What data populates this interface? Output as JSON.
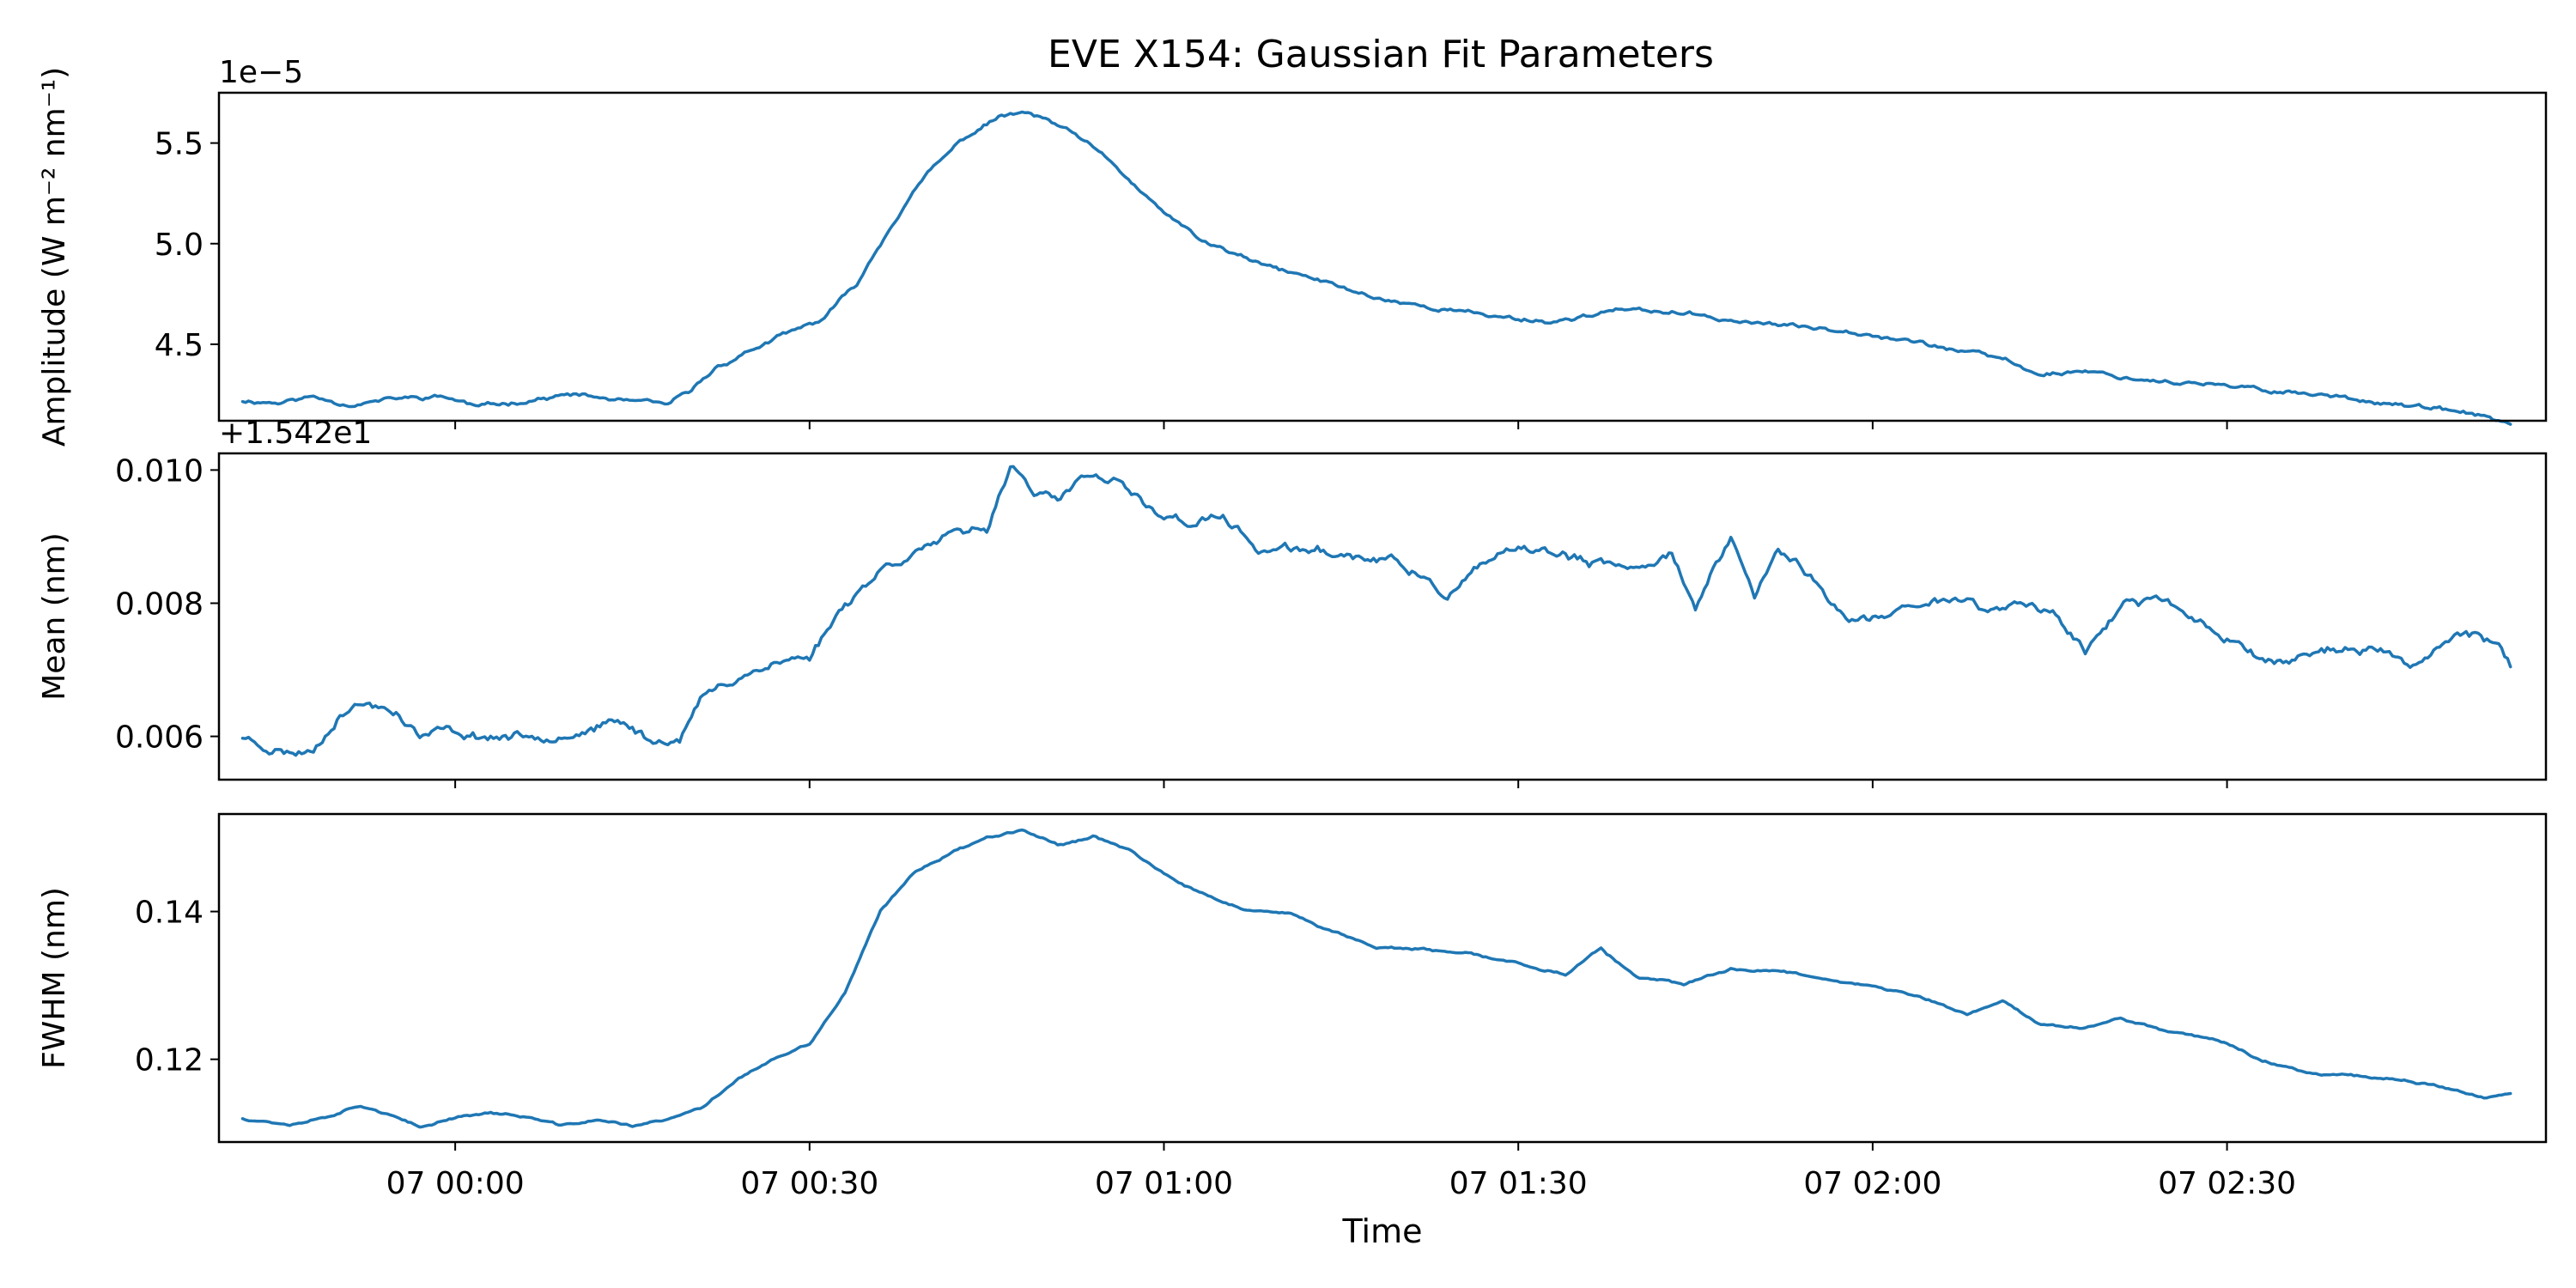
{
  "chart_data": [
    {
      "type": "line",
      "title": "EVE X154: Gaussian Fit Parameters",
      "ylabel": "Amplitude (W m⁻² nm⁻¹)",
      "offset_label": "1e−5",
      "xlim": [
        -20,
        177
      ],
      "ylim": [
        4.12,
        5.75
      ],
      "yticks": [
        4.5,
        5.0,
        5.5
      ],
      "ytick_labels": [
        "4.5",
        "5.0",
        "5.5"
      ],
      "color": "#1f77b4",
      "keypoints": [
        [
          -18,
          4.22
        ],
        [
          -15,
          4.21
        ],
        [
          -12,
          4.24
        ],
        [
          -9,
          4.2
        ],
        [
          -5,
          4.23
        ],
        [
          -1,
          4.24
        ],
        [
          2,
          4.19
        ],
        [
          6,
          4.22
        ],
        [
          10,
          4.25
        ],
        [
          14,
          4.22
        ],
        [
          18,
          4.2
        ],
        [
          20,
          4.27
        ],
        [
          22,
          4.38
        ],
        [
          25,
          4.47
        ],
        [
          28,
          4.55
        ],
        [
          31,
          4.62
        ],
        [
          34,
          4.8
        ],
        [
          37,
          5.1
        ],
        [
          40,
          5.35
        ],
        [
          43,
          5.52
        ],
        [
          46,
          5.63
        ],
        [
          48,
          5.65
        ],
        [
          50,
          5.62
        ],
        [
          53,
          5.52
        ],
        [
          56,
          5.38
        ],
        [
          59,
          5.2
        ],
        [
          63,
          5.02
        ],
        [
          68,
          4.9
        ],
        [
          73,
          4.82
        ],
        [
          78,
          4.73
        ],
        [
          83,
          4.68
        ],
        [
          88,
          4.64
        ],
        [
          93,
          4.61
        ],
        [
          98,
          4.67
        ],
        [
          103,
          4.66
        ],
        [
          108,
          4.62
        ],
        [
          113,
          4.59
        ],
        [
          118,
          4.57
        ],
        [
          123,
          4.52
        ],
        [
          128,
          4.46
        ],
        [
          131,
          4.43
        ],
        [
          134,
          4.35
        ],
        [
          138,
          4.37
        ],
        [
          142,
          4.33
        ],
        [
          146,
          4.31
        ],
        [
          150,
          4.29
        ],
        [
          154,
          4.27
        ],
        [
          158,
          4.25
        ],
        [
          162,
          4.22
        ],
        [
          166,
          4.19
        ],
        [
          170,
          4.16
        ],
        [
          172,
          4.14
        ],
        [
          174,
          4.1
        ]
      ],
      "noise": 0.012,
      "seed": 11
    },
    {
      "type": "line",
      "ylabel": "Mean (nm)",
      "offset_label": "+1.542e1",
      "xlim": [
        -20,
        177
      ],
      "ylim": [
        0.00535,
        0.01025
      ],
      "yticks": [
        0.006,
        0.008,
        0.01
      ],
      "ytick_labels": [
        "0.006",
        "0.008",
        "0.010"
      ],
      "color": "#1f77b4",
      "keypoints": [
        [
          -18,
          0.006
        ],
        [
          -16,
          0.00585
        ],
        [
          -14,
          0.00575
        ],
        [
          -12,
          0.0058
        ],
        [
          -10,
          0.0063
        ],
        [
          -8,
          0.0065
        ],
        [
          -5,
          0.0064
        ],
        [
          -3,
          0.006
        ],
        [
          -1,
          0.0061
        ],
        [
          2,
          0.006
        ],
        [
          6,
          0.006
        ],
        [
          10,
          0.00605
        ],
        [
          14,
          0.0062
        ],
        [
          17,
          0.0059
        ],
        [
          19,
          0.006
        ],
        [
          21,
          0.0066
        ],
        [
          24,
          0.0069
        ],
        [
          27,
          0.0071
        ],
        [
          30,
          0.0072
        ],
        [
          33,
          0.008
        ],
        [
          36,
          0.0085
        ],
        [
          39,
          0.0088
        ],
        [
          42,
          0.009
        ],
        [
          45,
          0.0091
        ],
        [
          47,
          0.0101
        ],
        [
          49,
          0.0097
        ],
        [
          51,
          0.0095
        ],
        [
          53,
          0.0099
        ],
        [
          56,
          0.0098
        ],
        [
          59,
          0.0094
        ],
        [
          62,
          0.0092
        ],
        [
          65,
          0.0093
        ],
        [
          68,
          0.0088
        ],
        [
          72,
          0.0088
        ],
        [
          76,
          0.0087
        ],
        [
          80,
          0.0086
        ],
        [
          84,
          0.0081
        ],
        [
          88,
          0.0087
        ],
        [
          92,
          0.0088
        ],
        [
          96,
          0.0086
        ],
        [
          100,
          0.0085
        ],
        [
          103,
          0.0088
        ],
        [
          105,
          0.0079
        ],
        [
          108,
          0.009
        ],
        [
          110,
          0.0081
        ],
        [
          112,
          0.0088
        ],
        [
          115,
          0.0084
        ],
        [
          118,
          0.0077
        ],
        [
          121,
          0.0078
        ],
        [
          124,
          0.008
        ],
        [
          127,
          0.0081
        ],
        [
          130,
          0.0079
        ],
        [
          133,
          0.008
        ],
        [
          135,
          0.0079
        ],
        [
          138,
          0.0073
        ],
        [
          141,
          0.0079
        ],
        [
          144,
          0.0081
        ],
        [
          147,
          0.0078
        ],
        [
          150,
          0.0075
        ],
        [
          154,
          0.0071
        ],
        [
          158,
          0.0073
        ],
        [
          162,
          0.0073
        ],
        [
          166,
          0.0071
        ],
        [
          170,
          0.0076
        ],
        [
          173,
          0.0074
        ],
        [
          174,
          0.0071
        ]
      ],
      "noise": 8e-05,
      "seed": 23
    },
    {
      "type": "line",
      "ylabel": "FWHM (nm)",
      "offset_label": "",
      "xlabel": "Time",
      "xlim": [
        -20,
        177
      ],
      "ylim": [
        0.1088,
        0.1532
      ],
      "yticks": [
        0.12,
        0.14
      ],
      "ytick_labels": [
        "0.12",
        "0.14"
      ],
      "xticks": [
        0,
        30,
        60,
        90,
        120,
        150
      ],
      "xtick_labels": [
        "07 00:00",
        "07 00:30",
        "07 01:00",
        "07 01:30",
        "07 02:00",
        "07 02:30"
      ],
      "color": "#1f77b4",
      "keypoints": [
        [
          -18,
          0.112
        ],
        [
          -14,
          0.1112
        ],
        [
          -11,
          0.1122
        ],
        [
          -8,
          0.1138
        ],
        [
          -6,
          0.1128
        ],
        [
          -3,
          0.1107
        ],
        [
          0,
          0.1122
        ],
        [
          3,
          0.1128
        ],
        [
          6,
          0.1122
        ],
        [
          9,
          0.111
        ],
        [
          12,
          0.1118
        ],
        [
          15,
          0.111
        ],
        [
          18,
          0.1118
        ],
        [
          21,
          0.1135
        ],
        [
          24,
          0.1175
        ],
        [
          27,
          0.12
        ],
        [
          30,
          0.122
        ],
        [
          33,
          0.129
        ],
        [
          36,
          0.14
        ],
        [
          39,
          0.1455
        ],
        [
          42,
          0.148
        ],
        [
          45,
          0.15
        ],
        [
          48,
          0.1512
        ],
        [
          51,
          0.149
        ],
        [
          54,
          0.1502
        ],
        [
          57,
          0.1485
        ],
        [
          60,
          0.145
        ],
        [
          63,
          0.1425
        ],
        [
          67,
          0.1402
        ],
        [
          71,
          0.1395
        ],
        [
          74,
          0.1375
        ],
        [
          78,
          0.1352
        ],
        [
          82,
          0.1348
        ],
        [
          86,
          0.1342
        ],
        [
          90,
          0.133
        ],
        [
          94,
          0.1315
        ],
        [
          97,
          0.135
        ],
        [
          100,
          0.131
        ],
        [
          104,
          0.1302
        ],
        [
          108,
          0.1322
        ],
        [
          112,
          0.132
        ],
        [
          116,
          0.131
        ],
        [
          120,
          0.1298
        ],
        [
          124,
          0.1285
        ],
        [
          128,
          0.126
        ],
        [
          131,
          0.128
        ],
        [
          134,
          0.1248
        ],
        [
          138,
          0.1242
        ],
        [
          141,
          0.1255
        ],
        [
          145,
          0.1238
        ],
        [
          149,
          0.1228
        ],
        [
          153,
          0.1198
        ],
        [
          157,
          0.1182
        ],
        [
          161,
          0.1178
        ],
        [
          165,
          0.1172
        ],
        [
          169,
          0.116
        ],
        [
          172,
          0.1148
        ],
        [
          174,
          0.1152
        ]
      ],
      "noise": 0.00018,
      "seed": 37
    }
  ]
}
